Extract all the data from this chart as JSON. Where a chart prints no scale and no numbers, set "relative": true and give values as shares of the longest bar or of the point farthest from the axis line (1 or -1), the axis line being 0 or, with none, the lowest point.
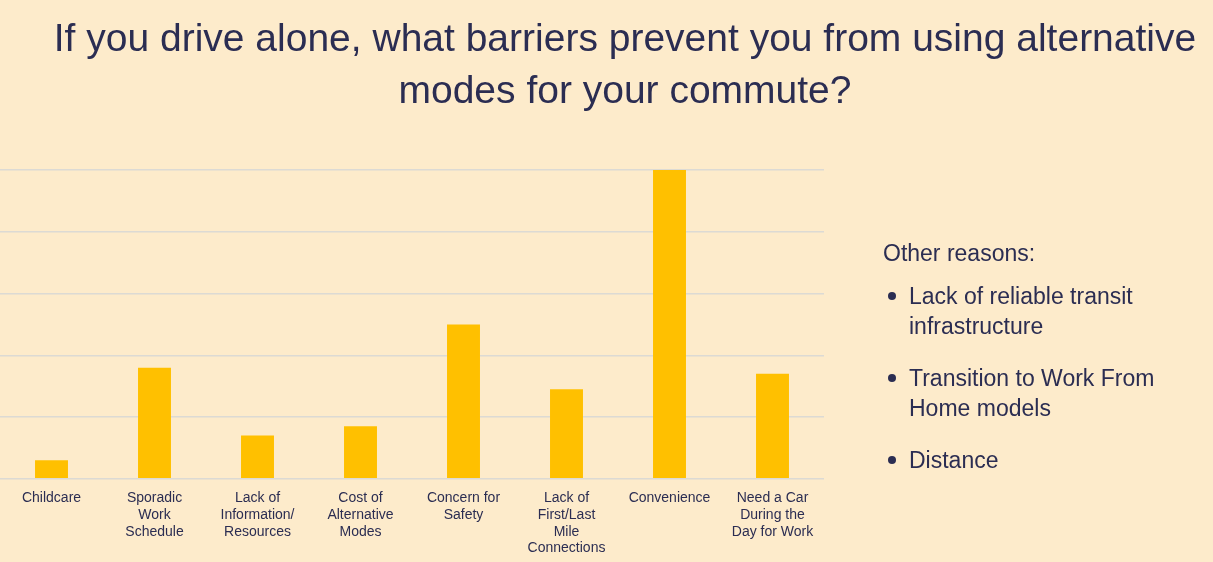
{
  "chart_data": {
    "type": "bar",
    "title": "If you drive alone, what barriers prevent you from using alternative modes for your commute?",
    "categories": [
      "Childcare",
      "Sporadic Work Schedule",
      "Lack of Information/ Resources",
      "Cost of Alternative Modes",
      "Concern for Safety",
      "Lack of First/Last Mile Connections",
      "Convenience",
      "Need a Car During the Day for Work"
    ],
    "values": [
      0.06,
      0.36,
      0.14,
      0.17,
      0.5,
      0.29,
      1,
      0.34
    ],
    "color": "#ffc000",
    "relative": true,
    "grid": "y",
    "annotations": [
      "Other reasons:",
      "Lack of reliable transit infrastructure",
      "Transition to Work From Home models",
      "Distance"
    ]
  }
}
